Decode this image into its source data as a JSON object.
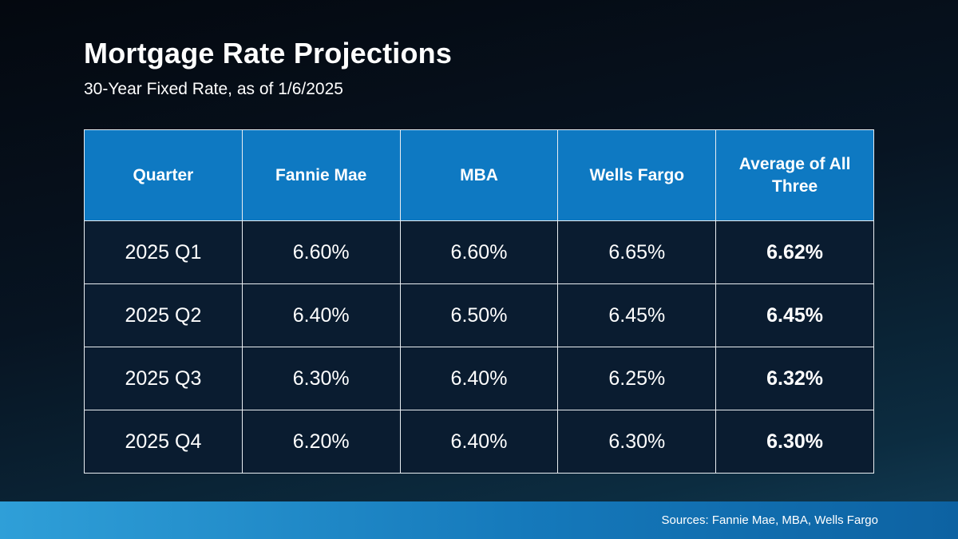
{
  "slide": {
    "title": "Mortgage Rate Projections",
    "subtitle": "30-Year Fixed Rate, as of 1/6/2025",
    "sources": "Sources: Fannie Mae, MBA, Wells Fargo"
  },
  "colors": {
    "header_blue": "#0e79c2",
    "body_cell_navy": "#0a1c30",
    "footer_gradient_left": "#2f9fd8",
    "footer_gradient_right": "#0d62a2",
    "background_top": "#04080f",
    "background_bottom": "#123d55",
    "text_white": "#ffffff"
  },
  "chart_data": {
    "type": "table",
    "title": "Mortgage Rate Projections",
    "subtitle": "30-Year Fixed Rate, as of 1/6/2025",
    "source_note": "Sources: Fannie Mae, MBA, Wells Fargo",
    "columns": [
      "Quarter",
      "Fannie Mae",
      "MBA",
      "Wells Fargo",
      "Average of All Three"
    ],
    "rows": [
      [
        "2025 Q1",
        "6.60%",
        "6.60%",
        "6.65%",
        "6.62%"
      ],
      [
        "2025 Q2",
        "6.40%",
        "6.50%",
        "6.45%",
        "6.45%"
      ],
      [
        "2025 Q3",
        "6.30%",
        "6.40%",
        "6.25%",
        "6.32%"
      ],
      [
        "2025 Q4",
        "6.20%",
        "6.40%",
        "6.30%",
        "6.30%"
      ]
    ],
    "layout": {
      "header_style": "blue background, bold white text",
      "last_column_bold": true,
      "grid": "thin white borders on dark navy cells"
    }
  }
}
